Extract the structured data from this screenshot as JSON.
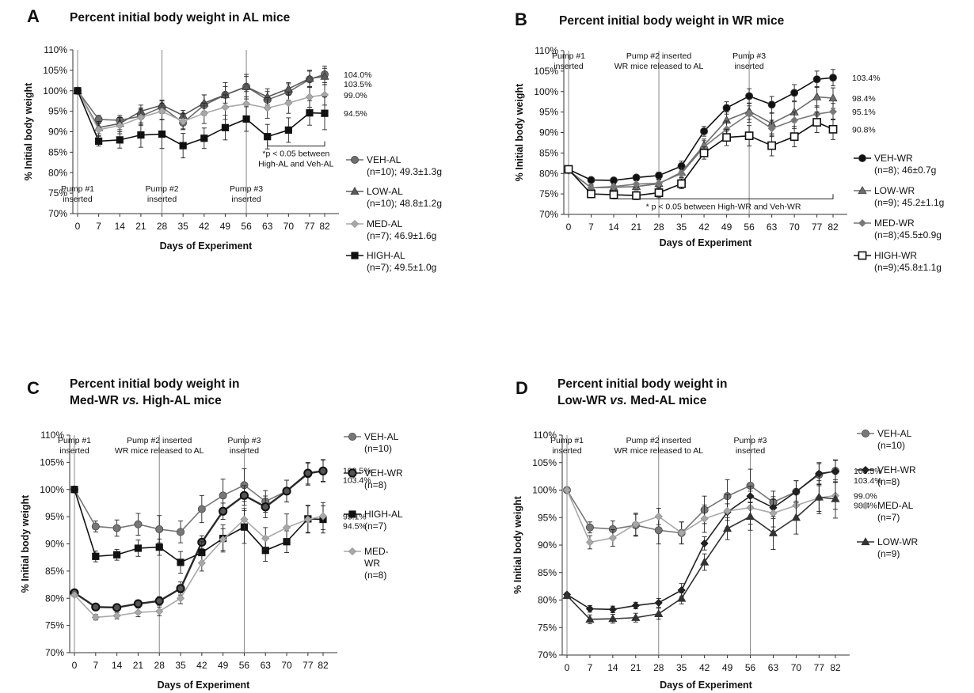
{
  "chart_data": [
    {
      "id": "A",
      "panel_letter": "A",
      "type": "line",
      "title": [
        "Percent initial body weight in AL mice"
      ],
      "xlabel": "Days of Experiment",
      "ylabel": "% Initial body weight",
      "x": [
        0,
        7,
        14,
        21,
        28,
        35,
        42,
        49,
        56,
        63,
        70,
        77,
        82
      ],
      "ylim": [
        70,
        110
      ],
      "yticks": [
        70,
        75,
        80,
        85,
        90,
        95,
        100,
        105,
        110
      ],
      "vlines": [
        {
          "x": 0,
          "label": [
            "Pump #1",
            "inserted"
          ],
          "pos": "bottom"
        },
        {
          "x": 28,
          "label": [
            "Pump #2",
            "inserted"
          ],
          "pos": "bottom"
        },
        {
          "x": 56,
          "label": [
            "Pump #3",
            "inserted"
          ],
          "pos": "bottom"
        }
      ],
      "bracket": {
        "x1": 63,
        "x2": 82,
        "y": 86.5,
        "label": [
          "*p < 0.05 between",
          "High-AL and Veh-AL"
        ]
      },
      "series": [
        {
          "name": "VEH-AL",
          "marker": "circle",
          "color": "#6e6e6e",
          "values": [
            100,
            93,
            92.8,
            93.8,
            96,
            92.2,
            96.5,
            99,
            101,
            97.8,
            99.7,
            102.8,
            104
          ],
          "errors": [
            0,
            1,
            1.2,
            2,
            1.5,
            1.5,
            2.5,
            3,
            3,
            2,
            2,
            2,
            2
          ],
          "end_label": "104.0%"
        },
        {
          "name": "LOW-AL",
          "marker": "triangle",
          "color": "#5a5a5a",
          "values": [
            100,
            91,
            92,
            95,
            96.5,
            94,
            97,
            99,
            101,
            98.5,
            100.5,
            103,
            103.5
          ],
          "errors": [
            0,
            1.5,
            1.5,
            1.5,
            1.2,
            1.2,
            2,
            2,
            2.5,
            2,
            1.5,
            2,
            2
          ],
          "end_label": "103.5%"
        },
        {
          "name": "MED-AL",
          "marker": "diamond",
          "color": "#a8a8a8",
          "values": [
            100,
            90.5,
            91.5,
            93.5,
            95,
            92.5,
            94.5,
            96,
            96.8,
            95.8,
            97,
            98.5,
            99
          ],
          "errors": [
            0,
            1.5,
            2,
            2,
            2,
            2,
            2.5,
            3,
            3,
            2.5,
            2.5,
            2.5,
            2.5
          ],
          "end_label": "99.0%"
        },
        {
          "name": "HIGH-AL",
          "marker": "square",
          "color": "#111111",
          "values": [
            100,
            87.7,
            88,
            89.2,
            89.4,
            86.6,
            88.4,
            91,
            93.1,
            88.8,
            90.4,
            94.6,
            94.5
          ],
          "errors": [
            0,
            1.2,
            2,
            3,
            3.5,
            3,
            2.5,
            3,
            3,
            3,
            3,
            3,
            4
          ],
          "end_label": "94.5%"
        }
      ],
      "legend": [
        {
          "lines": [
            "VEH-AL",
            "(n=10); 49.3±1.3g"
          ],
          "marker": "circle",
          "color": "#6e6e6e"
        },
        {
          "lines": [
            "LOW-AL",
            "(n=10); 48.8±1.2g"
          ],
          "marker": "triangle",
          "color": "#5a5a5a"
        },
        {
          "lines": [
            "MED-AL",
            "(n=7); 46.9±1.6g"
          ],
          "marker": "diamond",
          "color": "#a8a8a8"
        },
        {
          "lines": [
            "HIGH-AL",
            "(n=7); 49.5±1.0g"
          ],
          "marker": "square",
          "color": "#111111"
        }
      ]
    },
    {
      "id": "B",
      "panel_letter": "B",
      "type": "line",
      "title": [
        "Percent initial body weight in WR mice"
      ],
      "xlabel": "Days of Experiment",
      "ylabel": "% Initial body weight",
      "x": [
        0,
        7,
        14,
        21,
        28,
        35,
        42,
        49,
        56,
        63,
        70,
        77,
        82
      ],
      "ylim": [
        70,
        110
      ],
      "yticks": [
        70,
        75,
        80,
        85,
        90,
        95,
        100,
        105,
        110
      ],
      "vlines": [
        {
          "x": 0,
          "label": [
            "Pump #1",
            "inserted"
          ],
          "pos": "top"
        },
        {
          "x": 28,
          "label": [
            "Pump #2 inserted",
            "WR mice released to AL"
          ],
          "pos": "top"
        },
        {
          "x": 56,
          "label": [
            "Pump #3",
            "inserted"
          ],
          "pos": "top"
        }
      ],
      "bracket": {
        "x1": 14,
        "x2": 82,
        "y": 73.8,
        "label": [
          "*  p < 0.05 between High-WR and Veh-WR"
        ]
      },
      "series": [
        {
          "name": "VEH-WR",
          "marker": "circle",
          "color": "#111111",
          "values": [
            81,
            78.4,
            78.3,
            79,
            79.5,
            81.8,
            90.3,
            96,
            98.9,
            96.8,
            99.7,
            103,
            103.4
          ],
          "errors": [
            0,
            0.5,
            0.6,
            0.6,
            0.8,
            1.2,
            1.2,
            1.5,
            1.8,
            2,
            2,
            2,
            2
          ],
          "end_label": "103.4%"
        },
        {
          "name": "LOW-WR",
          "marker": "triangle",
          "color": "#6e6e6e",
          "values": [
            80.8,
            76.5,
            76.6,
            76.8,
            77.5,
            80.3,
            86.9,
            93,
            95.2,
            92.2,
            95,
            98.7,
            98.4
          ],
          "errors": [
            0,
            0.8,
            0.8,
            0.8,
            1,
            1.2,
            1.5,
            2,
            2,
            2.5,
            2.5,
            2.5,
            2.5
          ],
          "end_label": "98.4%"
        },
        {
          "name": "MED-WR",
          "marker": "diamond",
          "color": "#777777",
          "values": [
            80.6,
            76.5,
            76.8,
            77.4,
            77.6,
            80,
            86.5,
            90.8,
            94.5,
            91,
            93,
            94.5,
            95.1
          ],
          "errors": [
            0,
            0.6,
            0.6,
            0.8,
            0.8,
            1,
            1.5,
            2,
            2,
            2,
            2,
            2,
            2
          ],
          "end_label": "95.1%"
        },
        {
          "name": "HIGH-WR",
          "marker": "square-open",
          "color": "#111111",
          "values": [
            81,
            75,
            74.8,
            74.6,
            75.3,
            77.5,
            85,
            88.8,
            89.2,
            86.8,
            89,
            92.5,
            90.8
          ],
          "errors": [
            0,
            0.8,
            1,
            1,
            1.2,
            1.2,
            1.5,
            2,
            2.5,
            2.5,
            2.5,
            2.5,
            2.5
          ],
          "end_label": "90.8%"
        }
      ],
      "legend": [
        {
          "lines": [
            "VEH-WR",
            "(n=8); 46±0.7g"
          ],
          "marker": "circle",
          "color": "#111111"
        },
        {
          "lines": [
            "LOW-WR",
            "(n=9); 45.2±1.1g"
          ],
          "marker": "triangle",
          "color": "#6e6e6e"
        },
        {
          "lines": [
            "MED-WR",
            "(n=8);45.5±0.9g"
          ],
          "marker": "diamond",
          "color": "#777777"
        },
        {
          "lines": [
            "HIGH-WR",
            "(n=9);45.8±1.1g"
          ],
          "marker": "square-open",
          "color": "#111111"
        }
      ]
    },
    {
      "id": "C",
      "panel_letter": "C",
      "type": "line",
      "title": [
        "Percent initial body weight in",
        "Med-WR vs. High-AL mice"
      ],
      "xlabel": "Days of Experiment",
      "ylabel": "% Initial body weight",
      "x": [
        0,
        7,
        14,
        21,
        28,
        35,
        42,
        49,
        56,
        63,
        70,
        77,
        82
      ],
      "ylim": [
        70,
        110
      ],
      "yticks": [
        70,
        75,
        80,
        85,
        90,
        95,
        100,
        105,
        110
      ],
      "vlines": [
        {
          "x": 0,
          "label": [
            "Pump #1",
            "inserted"
          ],
          "pos": "top"
        },
        {
          "x": 28,
          "label": [
            "Pump #2 inserted",
            "WR mice released to AL"
          ],
          "pos": "top"
        },
        {
          "x": 56,
          "label": [
            "Pump #3",
            "inserted"
          ],
          "pos": "top"
        }
      ],
      "series": [
        {
          "name": "VEH-AL",
          "marker": "circle",
          "color": "#777777",
          "values": [
            100,
            93.2,
            92.9,
            93.6,
            92.7,
            92.2,
            96.4,
            98.9,
            100.8,
            97.8,
            99.7,
            102.8,
            103.5
          ],
          "errors": [
            0,
            1,
            1.5,
            2,
            2.5,
            2,
            2.5,
            3,
            3,
            2,
            2,
            2,
            2
          ],
          "end_label": "103.5%"
        },
        {
          "name": "VEH-WR",
          "marker": "circle-bold",
          "color": "#2a2a2a",
          "values": [
            81,
            78.4,
            78.3,
            79,
            79.5,
            81.8,
            90.3,
            96,
            98.9,
            96.8,
            99.7,
            103,
            103.4
          ],
          "errors": [
            0,
            0.6,
            0.6,
            0.6,
            0.8,
            1.2,
            1.2,
            1.5,
            1.8,
            2,
            2,
            2,
            2
          ],
          "end_label": "103.4%"
        },
        {
          "name": "HIGH-AL",
          "marker": "square",
          "color": "#111111",
          "values": [
            100,
            87.7,
            88,
            89.2,
            89.4,
            86.6,
            88.4,
            91,
            93.1,
            88.8,
            90.4,
            94.6,
            94.5
          ],
          "errors": [
            0,
            1,
            1,
            1.5,
            1.5,
            2,
            2,
            2.5,
            3,
            2,
            2,
            2.5,
            2.5
          ],
          "end_label": "94.5%"
        },
        {
          "name": "MED-WR",
          "marker": "diamond",
          "color": "#a8a8a8",
          "values": [
            80.6,
            76.5,
            76.8,
            77.4,
            77.6,
            80,
            86.5,
            90.8,
            94.5,
            91,
            93,
            94.5,
            95.1
          ],
          "errors": [
            0,
            0.5,
            0.6,
            0.8,
            0.8,
            1,
            1.5,
            2,
            2,
            2,
            2.5,
            2.5,
            2.5
          ],
          "end_label": "95.1%"
        }
      ],
      "legend": [
        {
          "lines": [
            "VEH-AL",
            "(n=10)"
          ],
          "marker": "circle",
          "color": "#777777"
        },
        {
          "lines": [
            "VEH-WR",
            "(n=8)"
          ],
          "marker": "circle-bold",
          "color": "#2a2a2a"
        },
        {
          "lines": [
            "HIGH-AL",
            "(n=7)"
          ],
          "marker": "square",
          "color": "#111111"
        },
        {
          "lines": [
            "MED-",
            "WR",
            "(n=8)"
          ],
          "marker": "diamond",
          "color": "#a8a8a8"
        }
      ]
    },
    {
      "id": "D",
      "panel_letter": "D",
      "type": "line",
      "title": [
        "Percent initial body weight in",
        "Low-WR vs. Med-AL mice"
      ],
      "xlabel": "Days of Experiment",
      "ylabel": "% Initial body weight",
      "x": [
        0,
        7,
        14,
        21,
        28,
        35,
        42,
        49,
        56,
        63,
        70,
        77,
        82
      ],
      "ylim": [
        70,
        110
      ],
      "yticks": [
        70,
        75,
        80,
        85,
        90,
        95,
        100,
        105,
        110
      ],
      "vlines": [
        {
          "x": 0,
          "label": [
            "Pump #1",
            "inserted"
          ],
          "pos": "top"
        },
        {
          "x": 28,
          "label": [
            "Pump #2 inserted",
            "WR mice released to AL"
          ],
          "pos": "top"
        },
        {
          "x": 56,
          "label": [
            "Pump #3",
            "inserted"
          ],
          "pos": "top"
        }
      ],
      "series": [
        {
          "name": "VEH-AL",
          "marker": "circle",
          "color": "#777777",
          "values": [
            100,
            93.2,
            92.9,
            93.6,
            92.7,
            92.2,
            96.4,
            98.9,
            100.8,
            97.8,
            99.7,
            102.8,
            103.5
          ],
          "errors": [
            0,
            1,
            1.5,
            2,
            2.5,
            2,
            2.5,
            3,
            3,
            2,
            2,
            2,
            2
          ],
          "end_label": "103.5%"
        },
        {
          "name": "VEH-WR",
          "marker": "diamond-dark",
          "color": "#222222",
          "values": [
            81,
            78.4,
            78.3,
            79,
            79.5,
            81.8,
            90.3,
            96,
            98.9,
            96.8,
            99.7,
            103,
            103.4
          ],
          "errors": [
            0,
            0.6,
            0.6,
            0.6,
            0.8,
            1.2,
            1.2,
            1.5,
            1.8,
            2,
            2,
            2,
            2
          ],
          "end_label": "103.4%"
        },
        {
          "name": "MED-AL",
          "marker": "diamond",
          "color": "#a8a8a8",
          "values": [
            100,
            90.5,
            91.3,
            93.8,
            95.2,
            92.2,
            94.8,
            96.2,
            96.8,
            95.8,
            97.2,
            98.6,
            99
          ],
          "errors": [
            0,
            1.2,
            1.5,
            2,
            1.5,
            2,
            2.5,
            3,
            3,
            2.5,
            2.5,
            2.5,
            2.5
          ],
          "end_label": "99.0%"
        },
        {
          "name": "LOW-WR",
          "marker": "triangle",
          "color": "#333333",
          "values": [
            80.8,
            76.5,
            76.6,
            76.8,
            77.5,
            80.3,
            86.9,
            93,
            95.2,
            92.2,
            95,
            98.7,
            98.4
          ],
          "errors": [
            0,
            0.8,
            0.8,
            0.8,
            1,
            1,
            1.5,
            2,
            2.5,
            3,
            3,
            3,
            3.5
          ],
          "end_label": "98.4%"
        }
      ],
      "legend": [
        {
          "lines": [
            "VEH-AL",
            "(n=10)"
          ],
          "marker": "circle",
          "color": "#777777"
        },
        {
          "lines": [
            "VEH-WR",
            "(n=8)"
          ],
          "marker": "diamond-dark",
          "color": "#222222"
        },
        {
          "lines": [
            "MED-AL",
            "(n=7)"
          ],
          "marker": "diamond",
          "color": "#a8a8a8"
        },
        {
          "lines": [
            "LOW-WR",
            "(n=9)"
          ],
          "marker": "triangle",
          "color": "#333333"
        }
      ]
    }
  ]
}
